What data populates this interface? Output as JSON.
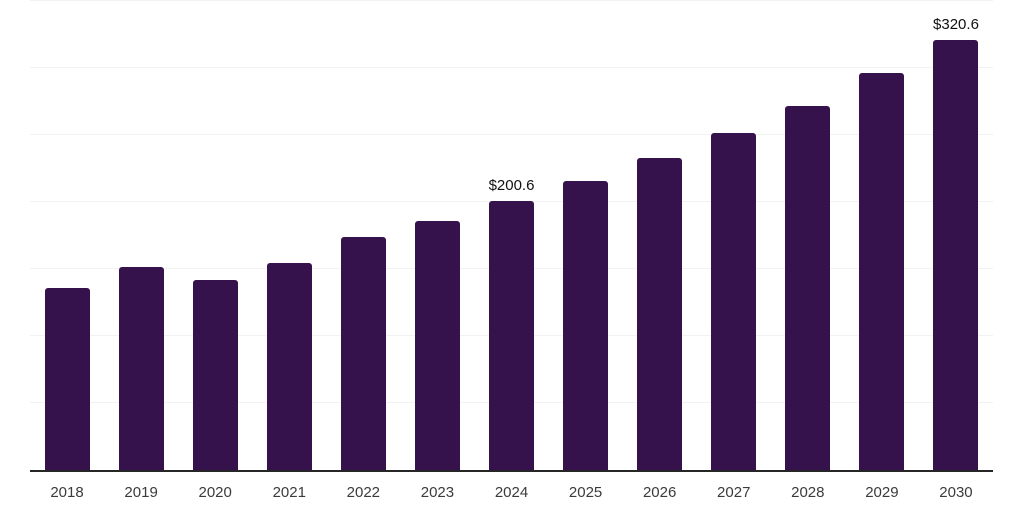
{
  "chart_data": {
    "type": "bar",
    "title": "",
    "xlabel": "",
    "ylabel": "",
    "categories": [
      "2018",
      "2019",
      "2020",
      "2021",
      "2022",
      "2023",
      "2024",
      "2025",
      "2026",
      "2027",
      "2028",
      "2029",
      "2030"
    ],
    "values": [
      135.8,
      151.4,
      141.8,
      154.7,
      173.9,
      185.8,
      200.6,
      215.7,
      232.8,
      251.5,
      271.9,
      296.3,
      320.6
    ],
    "bar_labels": [
      "",
      "",
      "",
      "",
      "",
      "",
      "$200.6",
      "",
      "",
      "",
      "",
      "",
      "$320.6"
    ],
    "ylim": [
      0,
      350
    ],
    "gridline_step": 50,
    "grid": "horizontal",
    "legend": "none",
    "y_tick_labels_visible": false
  },
  "colors": {
    "bar": "#36124d",
    "gridline": "#f2f2f2",
    "axis_line": "#262626",
    "x_label": "#3b3b3b",
    "data_label": "#111111",
    "background": "#ffffff"
  }
}
